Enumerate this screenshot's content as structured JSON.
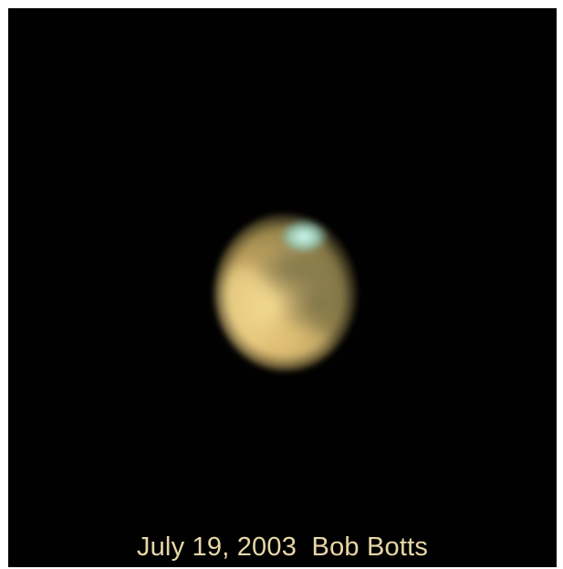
{
  "photo": {
    "caption": "July 19, 2003  Bob Botts",
    "background_color": "#010101",
    "caption_color": "#e8d7a6",
    "subject": "planet",
    "subject_colors": {
      "ochre_light": "#e6c77b",
      "ochre_mid": "#b89856",
      "dark_terrain": "#7d7048",
      "polar_cap": "#bff0e6"
    }
  }
}
